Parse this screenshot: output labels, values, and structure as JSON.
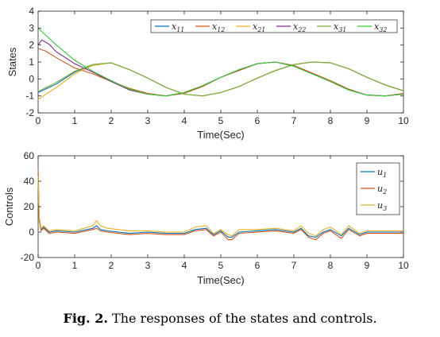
{
  "caption": {
    "label": "Fig. 2.",
    "text": "The responses of the states and controls."
  },
  "chart_data": [
    {
      "type": "line",
      "xlabel": "Time(Sec)",
      "ylabel": "States",
      "xlim": [
        0,
        10
      ],
      "ylim": [
        -2,
        4
      ],
      "xticks": [
        "0",
        "1",
        "2",
        "3",
        "4",
        "5",
        "6",
        "7",
        "8",
        "9",
        "10"
      ],
      "yticks": [
        "-2",
        "-1",
        "0",
        "1",
        "2",
        "3",
        "4"
      ],
      "legend_position": "top",
      "grid": false,
      "series": [
        {
          "name": "x11",
          "color": "#0072BD",
          "x": [
            0,
            0.5,
            1,
            1.5,
            2,
            2.5,
            3,
            3.5,
            4,
            4.5,
            5,
            5.5,
            6,
            6.5,
            7,
            7.5,
            8,
            8.5,
            9,
            9.5,
            10
          ],
          "y": [
            -0.8,
            -0.3,
            0.4,
            0.85,
            0.95,
            0.55,
            0.05,
            -0.5,
            -0.9,
            -1.0,
            -0.8,
            -0.45,
            0.05,
            0.5,
            0.85,
            1.0,
            0.95,
            0.6,
            0.1,
            -0.35,
            -0.7
          ]
        },
        {
          "name": "x12",
          "color": "#D95319",
          "x": [
            0,
            0.2,
            0.5,
            1,
            1.5,
            2,
            2.5,
            3,
            3.5,
            4,
            4.5,
            5,
            5.5,
            6,
            6.5,
            7,
            7.5,
            8,
            8.5,
            9,
            9.5,
            10
          ],
          "y": [
            1.8,
            1.65,
            1.25,
            0.65,
            0.3,
            -0.15,
            -0.55,
            -0.85,
            -1.0,
            -0.85,
            -0.45,
            0.1,
            0.5,
            0.9,
            1.0,
            0.8,
            0.35,
            -0.1,
            -0.6,
            -0.95,
            -1.0,
            -0.85
          ]
        },
        {
          "name": "x21",
          "color": "#EDB120",
          "x": [
            0,
            0.5,
            1,
            1.5,
            2,
            2.5,
            3,
            3.5,
            4,
            4.5,
            5,
            5.5,
            6,
            6.5,
            7,
            7.5,
            8,
            8.5,
            9,
            9.5,
            10
          ],
          "y": [
            -1.2,
            -0.5,
            0.3,
            0.8,
            0.95,
            0.55,
            0.05,
            -0.5,
            -0.9,
            -1.0,
            -0.8,
            -0.45,
            0.05,
            0.5,
            0.85,
            1.0,
            0.95,
            0.6,
            0.1,
            -0.35,
            -0.7
          ]
        },
        {
          "name": "x22",
          "color": "#7E2F8E",
          "x": [
            0,
            0.1,
            0.3,
            0.5,
            1,
            1.5,
            2,
            2.5,
            3,
            3.5,
            4,
            4.5,
            5,
            5.5,
            6,
            6.5,
            7,
            7.5,
            8,
            8.5,
            9,
            9.5,
            10
          ],
          "y": [
            2.0,
            2.3,
            2.05,
            1.6,
            0.9,
            0.4,
            -0.15,
            -0.65,
            -0.9,
            -1.0,
            -0.8,
            -0.4,
            0.1,
            0.55,
            0.9,
            1.0,
            0.75,
            0.3,
            -0.15,
            -0.65,
            -0.95,
            -1.0,
            -0.9
          ]
        },
        {
          "name": "x31",
          "color": "#77AC30",
          "x": [
            0,
            0.5,
            1,
            1.5,
            2,
            2.5,
            3,
            3.5,
            4,
            4.5,
            5,
            5.5,
            6,
            6.5,
            7,
            7.5,
            8,
            8.5,
            9,
            9.5,
            10
          ],
          "y": [
            -0.75,
            -0.2,
            0.45,
            0.85,
            0.95,
            0.55,
            0.05,
            -0.5,
            -0.9,
            -1.0,
            -0.8,
            -0.45,
            0.05,
            0.5,
            0.85,
            1.0,
            0.95,
            0.6,
            0.1,
            -0.35,
            -0.7
          ]
        },
        {
          "name": "x32",
          "color": "#2DCC2D",
          "x": [
            0,
            0.1,
            0.3,
            0.5,
            1,
            1.5,
            2,
            2.5,
            3,
            3.5,
            4,
            4.5,
            5,
            5.5,
            6,
            6.5,
            7,
            7.5,
            8,
            8.5,
            9,
            9.5,
            10
          ],
          "y": [
            3.0,
            2.8,
            2.4,
            2.0,
            1.1,
            0.45,
            -0.1,
            -0.6,
            -0.9,
            -1.0,
            -0.8,
            -0.4,
            0.1,
            0.55,
            0.9,
            1.0,
            0.75,
            0.3,
            -0.15,
            -0.65,
            -0.95,
            -1.0,
            -0.9
          ]
        }
      ]
    },
    {
      "type": "line",
      "xlabel": "Time(Sec)",
      "ylabel": "Controls",
      "xlim": [
        0,
        10
      ],
      "ylim": [
        -20,
        60
      ],
      "xticks": [
        "0",
        "1",
        "2",
        "3",
        "4",
        "5",
        "6",
        "7",
        "8",
        "9",
        "10"
      ],
      "yticks": [
        "-20",
        "0",
        "20",
        "40",
        "60"
      ],
      "legend_position": "top-right",
      "grid": false,
      "series": [
        {
          "name": "u1",
          "color": "#0072BD",
          "x": [
            0,
            0.03,
            0.08,
            0.15,
            0.3,
            0.5,
            1,
            1.5,
            1.6,
            1.7,
            1.9,
            2.2,
            2.5,
            3,
            3.5,
            4,
            4.3,
            4.6,
            4.8,
            5,
            5.2,
            5.3,
            5.5,
            6,
            6.5,
            7,
            7.2,
            7.4,
            7.6,
            7.8,
            8,
            8.3,
            8.5,
            8.8,
            9,
            9.5,
            10
          ],
          "y": [
            47,
            10,
            2,
            4,
            0,
            1,
            0,
            3,
            5,
            2,
            1,
            0,
            -1,
            0,
            -1,
            -1,
            2,
            3,
            -2,
            1,
            -4,
            -4,
            0,
            1,
            2,
            0,
            3,
            -3,
            -4,
            0,
            2,
            -3,
            3,
            -2,
            0,
            0,
            0
          ]
        },
        {
          "name": "u2",
          "color": "#D95319",
          "x": [
            0,
            0.03,
            0.08,
            0.15,
            0.3,
            0.5,
            1,
            1.5,
            1.6,
            1.7,
            1.9,
            2.2,
            2.5,
            3,
            3.5,
            4,
            4.3,
            4.6,
            4.8,
            5,
            5.2,
            5.3,
            5.5,
            6,
            6.5,
            7,
            7.2,
            7.4,
            7.6,
            7.8,
            8,
            8.3,
            8.5,
            8.8,
            9,
            9.5,
            10
          ],
          "y": [
            50,
            9,
            1,
            3,
            -1,
            0,
            -1,
            2,
            3,
            1,
            0,
            -1,
            -2,
            -1,
            -2,
            -2,
            1,
            2,
            -3,
            0,
            -6,
            -6,
            -1,
            0,
            1,
            -1,
            2,
            -4,
            -6,
            -1,
            1,
            -5,
            2,
            -3,
            -1,
            -1,
            -1
          ]
        },
        {
          "name": "u3",
          "color": "#EDB120",
          "x": [
            0,
            0.03,
            0.08,
            0.15,
            0.3,
            0.5,
            1,
            1.5,
            1.6,
            1.7,
            1.9,
            2.2,
            2.5,
            3,
            3.5,
            4,
            4.3,
            4.6,
            4.8,
            5,
            5.2,
            5.3,
            5.5,
            6,
            6.5,
            7,
            7.2,
            7.4,
            7.6,
            7.8,
            8,
            8.3,
            8.5,
            8.8,
            9,
            9.5,
            10
          ],
          "y": [
            44,
            12,
            3,
            5,
            1,
            2,
            1,
            5,
            9,
            5,
            3,
            2,
            1,
            1,
            0,
            0,
            4,
            5,
            -1,
            2,
            -2,
            -3,
            2,
            2,
            3,
            1,
            5,
            -1,
            -3,
            2,
            4,
            -2,
            5,
            -1,
            1,
            1,
            1
          ]
        }
      ]
    }
  ]
}
